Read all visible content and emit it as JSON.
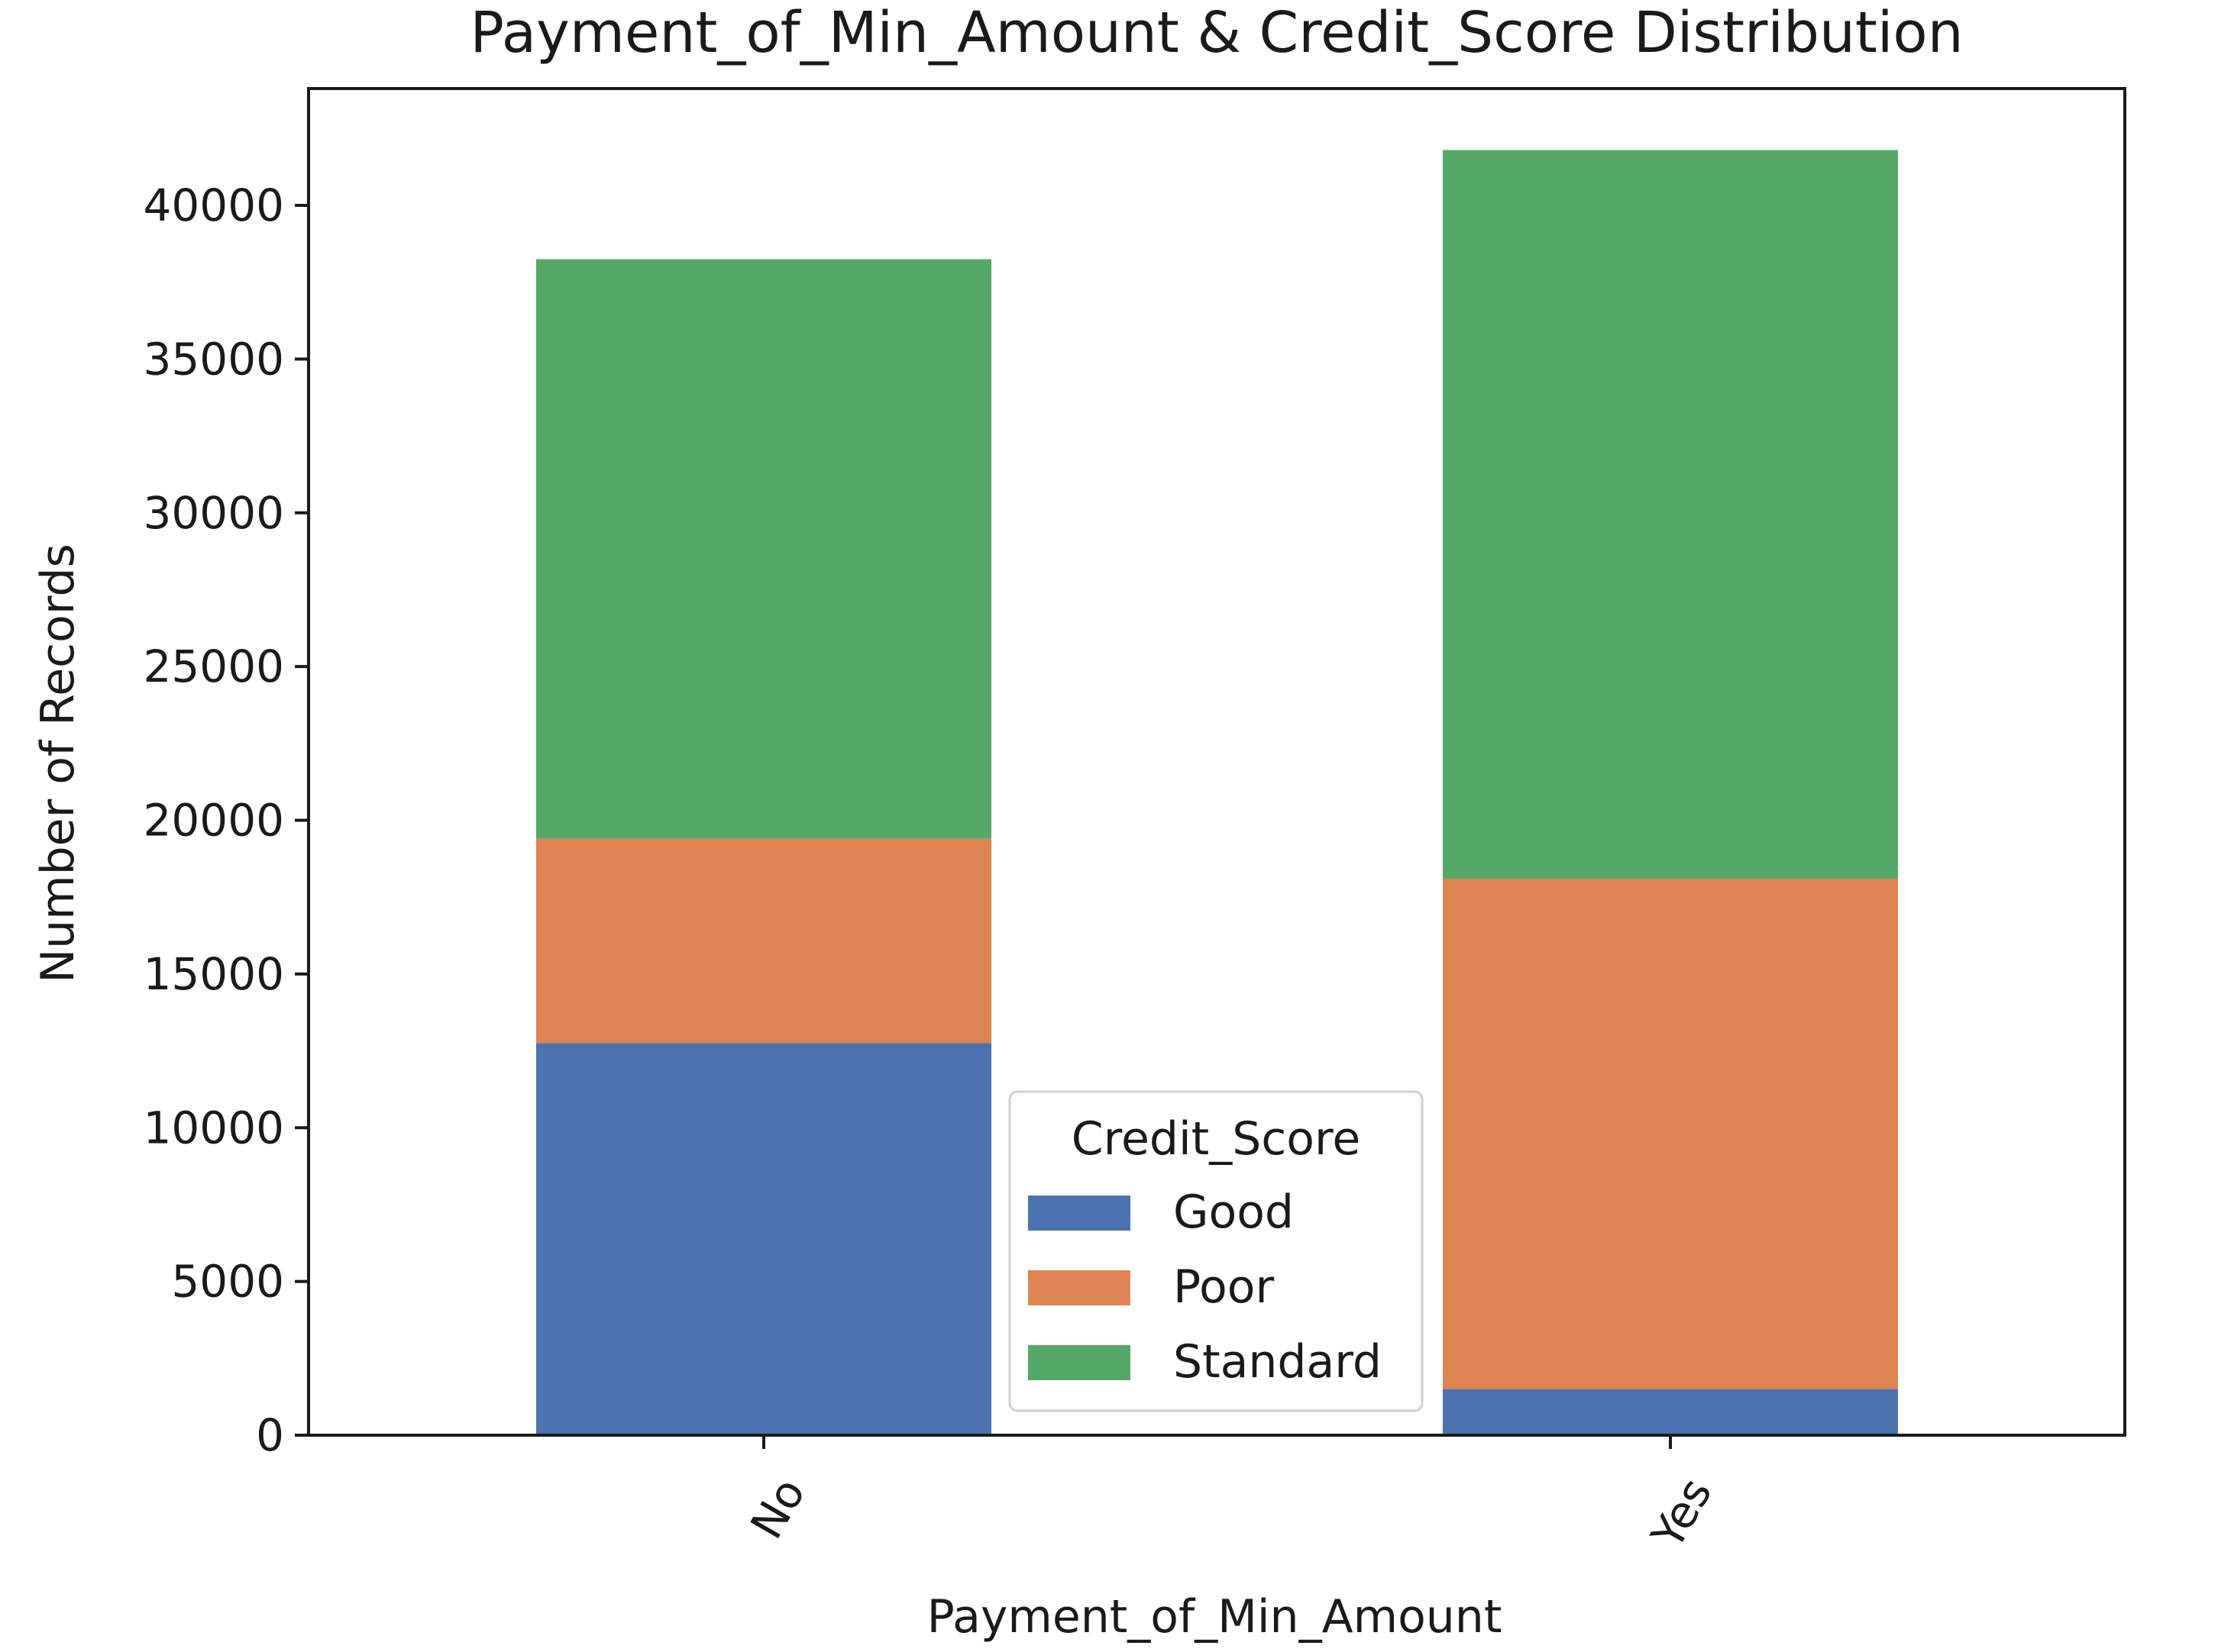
{
  "chart_data": {
    "type": "bar",
    "stacked": true,
    "title": "Payment_of_Min_Amount & Credit_Score Distribution",
    "xlabel": "Payment_of_Min_Amount",
    "ylabel": "Number of Records",
    "categories": [
      "No",
      "Yes"
    ],
    "series": [
      {
        "name": "Good",
        "color": "#4c72b0",
        "values": [
          12750,
          1500
        ]
      },
      {
        "name": "Poor",
        "color": "#dd8452",
        "values": [
          6650,
          16600
        ]
      },
      {
        "name": "Standard",
        "color": "#55a868",
        "values": [
          18850,
          23700
        ]
      }
    ],
    "ylim": [
      0,
      43800
    ],
    "yticks": [
      0,
      5000,
      10000,
      15000,
      20000,
      25000,
      30000,
      35000,
      40000
    ],
    "grid": false,
    "legend": {
      "title": "Credit_Score",
      "placement": "bottom-center"
    }
  }
}
